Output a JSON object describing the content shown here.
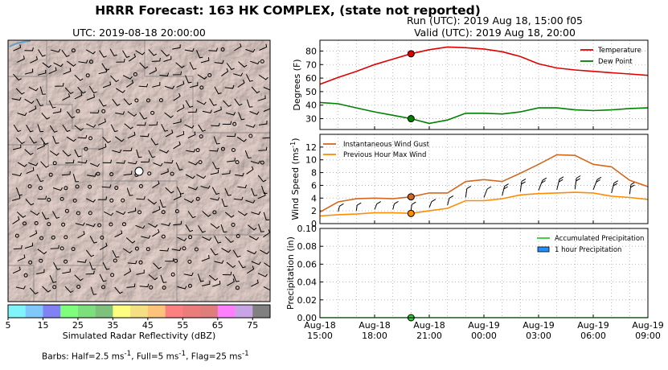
{
  "figure_title": "HRRR Forecast: 163 HK COMPLEX, (state not reported)",
  "map": {
    "title": "UTC: 2019-08-18 20:00:00",
    "colorbar": {
      "label": "Simulated Radar Reflectivity (dBZ)",
      "ticks": [
        "5",
        "15",
        "25",
        "35",
        "45",
        "55",
        "65",
        "75"
      ],
      "colors": [
        "#7ff5fb",
        "#80c8fb",
        "#8181f4",
        "#7efe7c",
        "#7cdf7c",
        "#7dc17d",
        "#fdfe80",
        "#f5df83",
        "#fdc37a",
        "#fd8080",
        "#ec7b7b",
        "#df7c7c",
        "#fd7ffc",
        "#c7a5e4",
        "#808080"
      ]
    },
    "barb_note_parts": [
      "Barbs: Half=2.5 ms",
      "-1",
      ", Full=5 ms",
      "-1",
      ", Flag=25 ms",
      "-1"
    ]
  },
  "run_title": "Run (UTC): 2019 Aug 18, 15:00 f05",
  "valid_title": "Valid (UTC): 2019 Aug 18, 20:00",
  "x_ticks": [
    "Aug-18\n15:00",
    "Aug-18\n18:00",
    "Aug-18\n21:00",
    "Aug-19\n00:00",
    "Aug-19\n03:00",
    "Aug-19\n06:00",
    "Aug-19\n09:00"
  ],
  "chart_data": [
    {
      "type": "line",
      "ylabel": "Degrees (F)",
      "ylim": [
        22,
        88
      ],
      "yticks": [
        30,
        40,
        50,
        60,
        70,
        80
      ],
      "x": [
        "15:00",
        "16:00",
        "17:00",
        "18:00",
        "19:00",
        "20:00",
        "21:00",
        "22:00",
        "23:00",
        "00:00",
        "01:00",
        "02:00",
        "03:00",
        "04:00",
        "05:00",
        "06:00",
        "07:00",
        "08:00",
        "09:00"
      ],
      "series": [
        {
          "name": "Temperature",
          "color": "#e00000",
          "values": [
            55.5,
            60.5,
            65,
            70,
            74,
            78,
            81,
            83,
            82.5,
            81.5,
            79.5,
            76,
            70.5,
            67.5,
            66,
            65,
            64,
            63,
            62
          ]
        },
        {
          "name": "Dew Point",
          "color": "#008000",
          "values": [
            42,
            41,
            38,
            35,
            32.5,
            30,
            26.5,
            29,
            34,
            34,
            33.5,
            35,
            38,
            38,
            36.5,
            36,
            36.5,
            37.5,
            38
          ]
        }
      ],
      "marker_index": 5,
      "legend": "top-right",
      "grid": true
    },
    {
      "type": "line",
      "ylabel": "Wind Speed (ms-1)",
      "ylim": [
        0,
        14
      ],
      "yticks": [
        0,
        2,
        4,
        6,
        8,
        10,
        12
      ],
      "x": [
        "15:00",
        "16:00",
        "17:00",
        "18:00",
        "19:00",
        "20:00",
        "21:00",
        "22:00",
        "23:00",
        "00:00",
        "01:00",
        "02:00",
        "03:00",
        "04:00",
        "05:00",
        "06:00",
        "07:00",
        "08:00",
        "09:00"
      ],
      "series": [
        {
          "name": "Instantaneous Wind Gust",
          "color": "#d2691e",
          "values": [
            1.8,
            3.4,
            3.9,
            4.0,
            3.9,
            4.2,
            4.8,
            4.8,
            6.6,
            6.9,
            6.6,
            7.9,
            9.3,
            10.8,
            10.7,
            9.3,
            8.9,
            6.8,
            5.8
          ]
        },
        {
          "name": "Previous Hour Max Wind",
          "color": "#ff8c00",
          "values": [
            1.2,
            1.4,
            1.5,
            1.7,
            1.7,
            1.6,
            2.0,
            2.4,
            3.6,
            3.6,
            3.9,
            4.5,
            4.7,
            4.8,
            4.9,
            4.8,
            4.3,
            4.1,
            3.8
          ]
        }
      ],
      "marker_index": 5,
      "legend": "top-left",
      "grid": true
    },
    {
      "type": "bar",
      "ylabel": "Precipitation (in)",
      "ylim": [
        0,
        0.1
      ],
      "yticks": [
        "0.00",
        "0.02",
        "0.04",
        "0.06",
        "0.08",
        "0.10"
      ],
      "x": [
        "15:00",
        "16:00",
        "17:00",
        "18:00",
        "19:00",
        "20:00",
        "21:00",
        "22:00",
        "23:00",
        "00:00",
        "01:00",
        "02:00",
        "03:00",
        "04:00",
        "05:00",
        "06:00",
        "07:00",
        "08:00",
        "09:00"
      ],
      "series": [
        {
          "name": "Accumulated Precipitation",
          "color": "#32cd32",
          "values": [
            0,
            0,
            0,
            0,
            0,
            0,
            0,
            0,
            0,
            0,
            0,
            0,
            0,
            0,
            0,
            0,
            0,
            0,
            0
          ]
        },
        {
          "name": "1 hour Precipitation",
          "color": "#1e90ff",
          "values": [
            0,
            0,
            0,
            0,
            0,
            0,
            0,
            0,
            0,
            0,
            0,
            0,
            0,
            0,
            0,
            0,
            0,
            0,
            0
          ]
        }
      ],
      "marker_index": 5,
      "legend": "top-right",
      "grid": true
    }
  ]
}
